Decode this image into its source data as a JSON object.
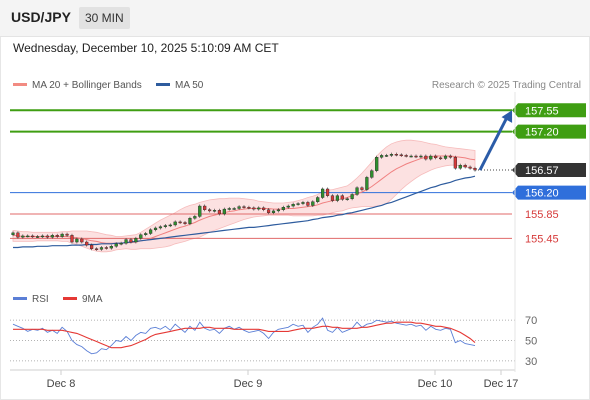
{
  "header": {
    "symbol": "USD/JPY",
    "timeframe": "30 MIN"
  },
  "timestamp": "Wednesday, December 10, 2025 5:10:09 AM CET",
  "legend": [
    {
      "label": "MA 20 + Bollinger Bands",
      "color": "#f28b82"
    },
    {
      "label": "MA 50",
      "color": "#2e5c9e"
    }
  ],
  "copyright": "Research © 2025 Trading Central",
  "rsi_legend": [
    {
      "label": "RSI",
      "color": "#5b7fd6"
    },
    {
      "label": "9MA",
      "color": "#e53935"
    }
  ],
  "colors": {
    "up": "#2f8f2f",
    "down": "#d63a3a",
    "resistance": "#3f9e12",
    "support": "#e06a6a",
    "pivot": "#2f6fdb",
    "arrow": "#2b5ca8"
  },
  "chart_data": [
    {
      "type": "candlestick",
      "ylim": [
        154.8,
        157.85
      ],
      "x_ticks": [
        "Dec 8",
        "Dec 9",
        "Dec 10",
        "Dec 17"
      ],
      "close": [
        155.54,
        155.47,
        155.49,
        155.49,
        155.48,
        155.48,
        155.49,
        155.47,
        155.5,
        155.48,
        155.52,
        155.5,
        155.39,
        155.44,
        155.39,
        155.34,
        155.28,
        155.27,
        155.3,
        155.29,
        155.32,
        155.36,
        155.37,
        155.43,
        155.39,
        155.45,
        155.51,
        155.53,
        155.59,
        155.62,
        155.64,
        155.66,
        155.67,
        155.72,
        155.71,
        155.69,
        155.78,
        155.81,
        155.98,
        155.92,
        155.9,
        155.91,
        155.85,
        155.93,
        155.94,
        155.94,
        155.97,
        155.96,
        155.95,
        155.93,
        155.95,
        155.92,
        155.87,
        155.9,
        155.92,
        155.96,
        155.98,
        156.01,
        156.02,
        156.04,
        155.99,
        156.05,
        156.12,
        156.26,
        156.15,
        156.07,
        156.15,
        156.09,
        156.1,
        156.17,
        156.28,
        156.25,
        156.45,
        156.56,
        156.78,
        156.81,
        156.81,
        156.83,
        156.82,
        156.81,
        156.8,
        156.8,
        156.79,
        156.8,
        156.75,
        156.8,
        156.77,
        156.76,
        156.8,
        156.78,
        156.6,
        156.65,
        156.62,
        156.6,
        156.57
      ],
      "ma20": [
        155.5,
        155.49,
        155.48,
        155.48,
        155.48,
        155.48,
        155.48,
        155.48,
        155.48,
        155.48,
        155.48,
        155.48,
        155.47,
        155.46,
        155.45,
        155.43,
        155.41,
        155.4,
        155.38,
        155.37,
        155.37,
        155.37,
        155.37,
        155.38,
        155.38,
        155.39,
        155.41,
        155.42,
        155.45,
        155.48,
        155.51,
        155.54,
        155.57,
        155.6,
        155.63,
        155.65,
        155.68,
        155.71,
        155.75,
        155.78,
        155.81,
        155.83,
        155.85,
        155.87,
        155.89,
        155.9,
        155.92,
        155.93,
        155.94,
        155.94,
        155.94,
        155.94,
        155.94,
        155.93,
        155.93,
        155.93,
        155.94,
        155.94,
        155.95,
        155.96,
        155.97,
        155.98,
        156.0,
        156.03,
        156.05,
        156.07,
        156.08,
        156.1,
        156.12,
        156.15,
        156.18,
        156.21,
        156.25,
        156.3,
        156.36,
        156.42,
        156.48,
        156.54,
        156.59,
        156.63,
        156.67,
        156.7,
        156.73,
        156.76,
        156.78,
        156.79,
        156.8,
        156.8,
        156.8,
        156.8,
        156.79,
        156.78,
        156.77,
        156.75,
        156.74
      ],
      "bb_upper": [
        155.58,
        155.57,
        155.56,
        155.56,
        155.55,
        155.55,
        155.55,
        155.55,
        155.55,
        155.55,
        155.56,
        155.56,
        155.57,
        155.57,
        155.57,
        155.57,
        155.56,
        155.55,
        155.53,
        155.51,
        155.5,
        155.48,
        155.48,
        155.49,
        155.5,
        155.51,
        155.55,
        155.6,
        155.65,
        155.7,
        155.75,
        155.79,
        155.83,
        155.87,
        155.92,
        155.96,
        155.99,
        156.01,
        156.04,
        156.06,
        156.08,
        156.09,
        156.1,
        156.1,
        156.11,
        156.11,
        156.11,
        156.1,
        156.09,
        156.08,
        156.06,
        156.05,
        156.04,
        156.03,
        156.03,
        156.03,
        156.04,
        156.05,
        156.07,
        156.09,
        156.12,
        156.14,
        156.17,
        156.22,
        156.24,
        156.25,
        156.27,
        156.29,
        156.31,
        156.37,
        156.44,
        156.52,
        156.61,
        156.7,
        156.8,
        156.88,
        156.95,
        157.0,
        157.03,
        157.05,
        157.06,
        157.06,
        157.05,
        157.04,
        157.02,
        157.0,
        156.99,
        156.97,
        156.95,
        156.94,
        156.93,
        156.92,
        156.91,
        156.9,
        156.89
      ],
      "bb_lower": [
        155.4,
        155.4,
        155.4,
        155.4,
        155.4,
        155.41,
        155.41,
        155.41,
        155.41,
        155.41,
        155.4,
        155.4,
        155.37,
        155.35,
        155.32,
        155.29,
        155.26,
        155.24,
        155.23,
        155.23,
        155.24,
        155.26,
        155.27,
        155.28,
        155.27,
        155.27,
        155.28,
        155.28,
        155.28,
        155.29,
        155.3,
        155.31,
        155.33,
        155.36,
        155.38,
        155.4,
        155.43,
        155.45,
        155.47,
        155.51,
        155.55,
        155.58,
        155.61,
        155.64,
        155.67,
        155.7,
        155.73,
        155.76,
        155.78,
        155.8,
        155.81,
        155.82,
        155.83,
        155.83,
        155.83,
        155.83,
        155.83,
        155.82,
        155.82,
        155.82,
        155.82,
        155.82,
        155.83,
        155.83,
        155.85,
        155.87,
        155.89,
        155.9,
        155.93,
        155.95,
        155.96,
        155.97,
        155.97,
        155.97,
        155.98,
        155.99,
        156.02,
        156.09,
        156.17,
        156.25,
        156.32,
        156.38,
        156.44,
        156.49,
        156.53,
        156.57,
        156.6,
        156.62,
        156.64,
        156.65,
        156.65,
        156.64,
        156.62,
        156.6,
        156.59
      ],
      "ma50": [
        155.3,
        155.3,
        155.31,
        155.31,
        155.31,
        155.32,
        155.32,
        155.32,
        155.33,
        155.33,
        155.33,
        155.33,
        155.34,
        155.34,
        155.34,
        155.35,
        155.35,
        155.35,
        155.36,
        155.36,
        155.36,
        155.37,
        155.37,
        155.38,
        155.39,
        155.4,
        155.41,
        155.42,
        155.43,
        155.44,
        155.45,
        155.46,
        155.47,
        155.48,
        155.49,
        155.5,
        155.51,
        155.52,
        155.53,
        155.54,
        155.55,
        155.56,
        155.57,
        155.58,
        155.59,
        155.6,
        155.61,
        155.62,
        155.63,
        155.63,
        155.64,
        155.65,
        155.66,
        155.67,
        155.68,
        155.69,
        155.7,
        155.71,
        155.72,
        155.73,
        155.74,
        155.76,
        155.77,
        155.79,
        155.8,
        155.81,
        155.83,
        155.84,
        155.86,
        155.87,
        155.89,
        155.91,
        155.93,
        155.95,
        155.97,
        155.99,
        156.02,
        156.04,
        156.07,
        156.1,
        156.13,
        156.16,
        156.19,
        156.22,
        156.25,
        156.28,
        156.3,
        156.33,
        156.35,
        156.37,
        156.4,
        156.42,
        156.44,
        156.45,
        156.47
      ],
      "levels": [
        {
          "value": 157.55,
          "label": "157.55",
          "kind": "resistance"
        },
        {
          "value": 157.2,
          "label": "157.20",
          "kind": "resistance"
        },
        {
          "value": 156.57,
          "label": "156.57",
          "kind": "last"
        },
        {
          "value": 156.2,
          "label": "156.20",
          "kind": "pivot"
        },
        {
          "value": 155.85,
          "label": "155.85",
          "kind": "support"
        },
        {
          "value": 155.45,
          "label": "155.45",
          "kind": "support"
        }
      ],
      "projection": {
        "from": 156.57,
        "to": 157.55
      }
    },
    {
      "type": "line",
      "ylim": [
        25,
        78
      ],
      "y_ticks": [
        70,
        50,
        30
      ],
      "rsi": [
        66,
        64,
        62,
        59,
        61,
        60,
        62,
        58,
        60,
        57,
        63,
        59,
        50,
        46,
        44,
        40,
        37,
        38,
        42,
        41,
        45,
        50,
        49,
        54,
        50,
        55,
        58,
        57,
        62,
        63,
        61,
        64,
        60,
        66,
        62,
        58,
        64,
        60,
        68,
        62,
        60,
        61,
        57,
        62,
        64,
        61,
        63,
        60,
        58,
        59,
        60,
        57,
        52,
        58,
        61,
        62,
        63,
        66,
        64,
        65,
        58,
        63,
        66,
        72,
        60,
        58,
        63,
        58,
        60,
        62,
        68,
        63,
        66,
        67,
        70,
        69,
        68,
        69,
        67,
        66,
        65,
        66,
        64,
        65,
        60,
        64,
        61,
        60,
        62,
        61,
        48,
        50,
        47,
        46,
        45
      ],
      "ma9": [
        61,
        61,
        61,
        61,
        61,
        61,
        61,
        60,
        60,
        60,
        60,
        59,
        58,
        57,
        55,
        53,
        51,
        49,
        47,
        45,
        43,
        43,
        43,
        44,
        45,
        47,
        49,
        51,
        54,
        56,
        57,
        58,
        59,
        60,
        61,
        62,
        62,
        62,
        62,
        63,
        63,
        62,
        62,
        62,
        62,
        61,
        61,
        61,
        61,
        61,
        61,
        60,
        59,
        59,
        59,
        59,
        59,
        60,
        61,
        62,
        62,
        62,
        63,
        64,
        64,
        63,
        63,
        62,
        62,
        62,
        62,
        63,
        63,
        64,
        65,
        66,
        67,
        67,
        68,
        68,
        68,
        68,
        67,
        67,
        66,
        65,
        64,
        64,
        63,
        62,
        60,
        58,
        55,
        52,
        48
      ]
    }
  ]
}
